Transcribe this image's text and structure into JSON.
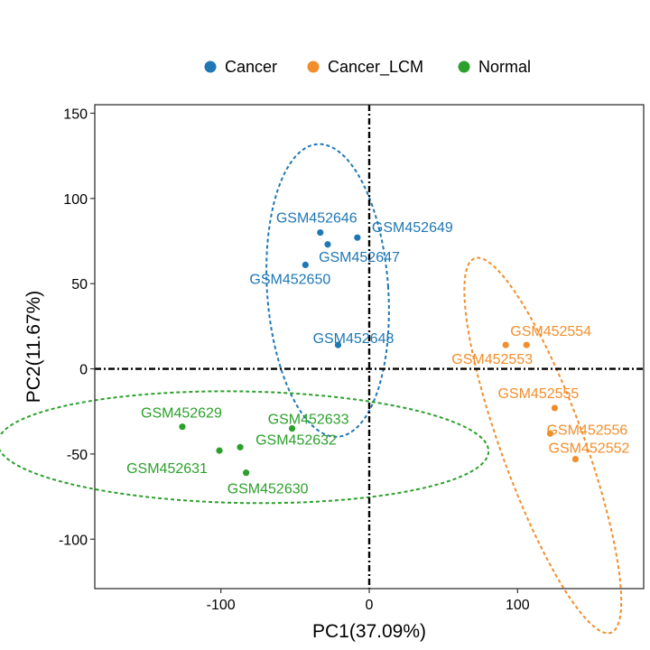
{
  "chart_data": {
    "type": "scatter",
    "xlabel": "PC1(37.09%)",
    "ylabel": "PC2(11.67%)",
    "xlim": [
      -185,
      185
    ],
    "ylim": [
      -129,
      155
    ],
    "xticks": [
      -100,
      0,
      100
    ],
    "yticks": [
      -100,
      -50,
      0,
      50,
      100,
      150
    ],
    "grid": false,
    "legend_position": "top",
    "zero_lines": true,
    "series": [
      {
        "name": "Cancer",
        "color": "#1F77B4",
        "points": [
          {
            "label": "GSM452646",
            "x": -33,
            "y": 80
          },
          {
            "label": "GSM452649",
            "x": -8,
            "y": 77
          },
          {
            "label": "GSM452647",
            "x": -28,
            "y": 73
          },
          {
            "label": "GSM452650",
            "x": -43,
            "y": 61
          },
          {
            "label": "GSM452648",
            "x": -21,
            "y": 14
          }
        ],
        "ellipse": {
          "cx": -28,
          "cy": 46,
          "rx": 38,
          "ry": 92,
          "angle": -4
        }
      },
      {
        "name": "Cancer_LCM",
        "color": "#F28E2B",
        "points": [
          {
            "label": "GSM452554",
            "x": 106,
            "y": 14
          },
          {
            "label": "GSM452553",
            "x": 92,
            "y": 14
          },
          {
            "label": "GSM452555",
            "x": 125,
            "y": -23
          },
          {
            "label": "GSM452552",
            "x": 122,
            "y": -38
          },
          {
            "label": "GSM452556",
            "x": 139,
            "y": -53
          }
        ],
        "ellipse": {
          "cx": 117,
          "cy": -45,
          "rx": 26,
          "ry": 125,
          "angle": -20
        }
      },
      {
        "name": "Normal",
        "color": "#2CA02C",
        "points": [
          {
            "label": "GSM452629",
            "x": -126,
            "y": -34
          },
          {
            "label": "GSM452633",
            "x": -52,
            "y": -35
          },
          {
            "label": "GSM452632",
            "x": -87,
            "y": -46
          },
          {
            "label": "GSM452631",
            "x": -101,
            "y": -48
          },
          {
            "label": "GSM452630",
            "x": -83,
            "y": -61
          }
        ],
        "ellipse": {
          "cx": -85,
          "cy": -46,
          "rx": 154,
          "ry": 35,
          "angle": 1
        }
      }
    ]
  }
}
